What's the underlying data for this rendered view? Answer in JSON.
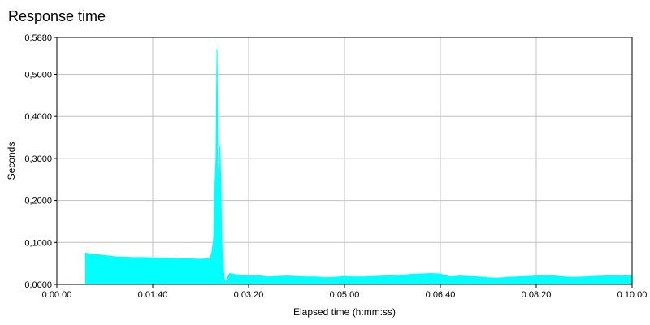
{
  "title": "Response time",
  "chart_data": {
    "type": "area",
    "title": "Response time",
    "xlabel": "Elapsed time (h:mm:ss)",
    "ylabel": "Seconds",
    "xlim": [
      0,
      600
    ],
    "ylim": [
      0,
      0.588
    ],
    "x_ticks": [
      "0:00:00",
      "0:01:40",
      "0:03:20",
      "0:05:00",
      "0:06:40",
      "0:08:20",
      "0:10:00"
    ],
    "y_ticks": [
      "0,0000",
      "0,1000",
      "0,2000",
      "0,3000",
      "0,4000",
      "0,5000",
      "0,5880"
    ],
    "grid": true,
    "series": [
      {
        "color": "#00FFFF",
        "x": [
          30,
          35,
          40,
          50,
          60,
          70,
          80,
          90,
          100,
          110,
          120,
          130,
          140,
          150,
          155,
          160,
          162,
          164,
          165,
          166,
          167,
          168,
          169,
          170,
          171,
          172,
          173,
          175,
          176,
          180,
          185,
          190,
          200,
          210,
          220,
          230,
          240,
          250,
          260,
          270,
          280,
          290,
          300,
          310,
          320,
          330,
          340,
          350,
          360,
          370,
          380,
          390,
          400,
          410,
          420,
          430,
          440,
          450,
          460,
          470,
          480,
          490,
          500,
          510,
          520,
          530,
          540,
          550,
          560,
          570,
          580,
          590,
          600
        ],
        "y": [
          0.075,
          0.072,
          0.071,
          0.069,
          0.066,
          0.065,
          0.064,
          0.064,
          0.063,
          0.062,
          0.062,
          0.061,
          0.061,
          0.06,
          0.061,
          0.062,
          0.08,
          0.12,
          0.24,
          0.3,
          0.56,
          0.28,
          0.22,
          0.33,
          0.24,
          0.1,
          0.05,
          0.008,
          0.007,
          0.026,
          0.024,
          0.022,
          0.02,
          0.021,
          0.018,
          0.019,
          0.02,
          0.019,
          0.018,
          0.018,
          0.016,
          0.017,
          0.019,
          0.018,
          0.018,
          0.019,
          0.02,
          0.021,
          0.022,
          0.024,
          0.025,
          0.026,
          0.025,
          0.018,
          0.02,
          0.019,
          0.018,
          0.016,
          0.015,
          0.017,
          0.018,
          0.019,
          0.02,
          0.021,
          0.02,
          0.018,
          0.017,
          0.018,
          0.019,
          0.02,
          0.021,
          0.02,
          0.022
        ]
      }
    ]
  }
}
